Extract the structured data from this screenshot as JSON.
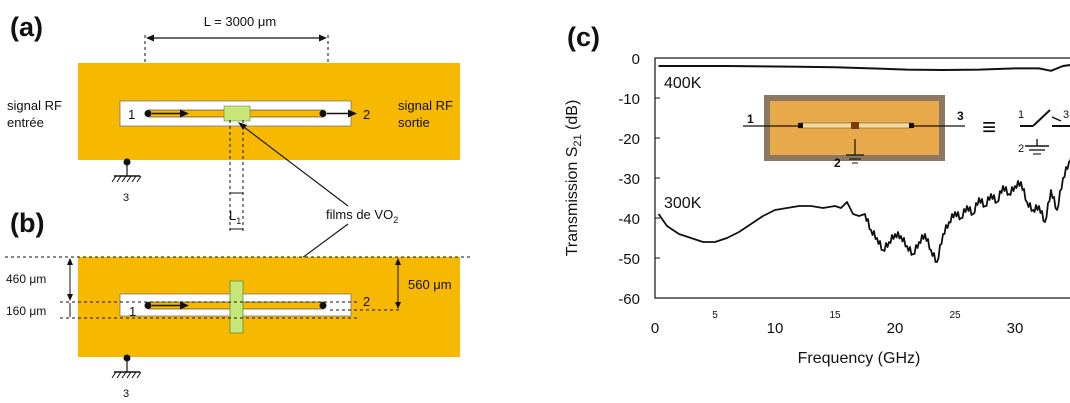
{
  "panels": {
    "a": "(a)",
    "b": "(b)",
    "c": "(c)"
  },
  "schematic_a": {
    "length_label": "L = 3000 μm",
    "signal_in": [
      "signal RF",
      "entrée"
    ],
    "signal_out": [
      "signal RF",
      "sortie"
    ],
    "port1": "1",
    "port2": "2",
    "ground_port": "3"
  },
  "schematic_b": {
    "l1_label": "L",
    "l1_sub": "1",
    "films_label": "films de VO",
    "films_sub": "2",
    "dim_460": "460 μm",
    "dim_160": "160 μm",
    "dim_560": "560 μm",
    "port1": "1",
    "port2": "2",
    "ground_port": "3"
  },
  "inset": {
    "port1": "1",
    "port2": "2",
    "port3": "3",
    "equiv": "≡",
    "sym_port1": "1",
    "sym_port2": "2",
    "sym_port3": "3"
  },
  "colors": {
    "substrate": "#f7b800",
    "line": "#111111",
    "film": "#c6e67a",
    "inset_border": "#8a7860",
    "inset_fill": "#e8a94a"
  },
  "chart_data": {
    "type": "line",
    "ylabel": "Transmission  S21 (dB)",
    "xlabel": "Frequency (GHz)",
    "xlim": [
      0,
      35
    ],
    "ylim": [
      -60,
      0
    ],
    "xticks": [
      "0",
      "5",
      "10",
      "15",
      "20",
      "25",
      "30"
    ],
    "xtick_values": [
      0,
      5,
      10,
      15,
      20,
      25,
      30
    ],
    "yticks": [
      "0",
      "-10",
      "-20",
      "-30",
      "-40",
      "-50",
      "-60"
    ],
    "ytick_values": [
      0,
      -10,
      -20,
      -30,
      -40,
      -50,
      -60
    ],
    "series": [
      {
        "name": "400K",
        "x": [
          0.3,
          3,
          6,
          9,
          12,
          15,
          18,
          21,
          24,
          27,
          30,
          32,
          33,
          34,
          35
        ],
        "y": [
          -2,
          -2,
          -2,
          -2.1,
          -2.2,
          -2.3,
          -2.6,
          -2.9,
          -3.0,
          -2.9,
          -2.6,
          -2.6,
          -3.2,
          -2.0,
          -1.6
        ]
      },
      {
        "name": "300K",
        "x": [
          0.3,
          1,
          2,
          3,
          4,
          5,
          6,
          7,
          8,
          9,
          10,
          11,
          12,
          13,
          14,
          15,
          15.5,
          16,
          16.5,
          17,
          17.5,
          18,
          18.5,
          19,
          19.5,
          20,
          20.5,
          21,
          21.5,
          22,
          22.5,
          23,
          23.5,
          24,
          24.5,
          25,
          25.5,
          26,
          26.5,
          27,
          27.5,
          28,
          28.5,
          29,
          29.5,
          30,
          30.5,
          31,
          31.5,
          32,
          32.5,
          33,
          33.5,
          34,
          34.5,
          35
        ],
        "y": [
          -39,
          -42,
          -44,
          -45,
          -46,
          -46,
          -45,
          -43.5,
          -41.5,
          -39.5,
          -38,
          -37.5,
          -37,
          -37,
          -37.5,
          -37,
          -37.5,
          -36,
          -39,
          -39.5,
          -39,
          -43,
          -45,
          -48,
          -46,
          -44,
          -44.5,
          -47,
          -49,
          -46,
          -44,
          -48,
          -51,
          -44,
          -41,
          -38.5,
          -40,
          -37,
          -39,
          -35,
          -37,
          -34,
          -36,
          -32,
          -34,
          -32,
          -31,
          -36,
          -38,
          -37,
          -41,
          -33,
          -38,
          -30,
          -26,
          -21
        ]
      }
    ],
    "annotations": [
      "400K",
      "300K"
    ]
  }
}
